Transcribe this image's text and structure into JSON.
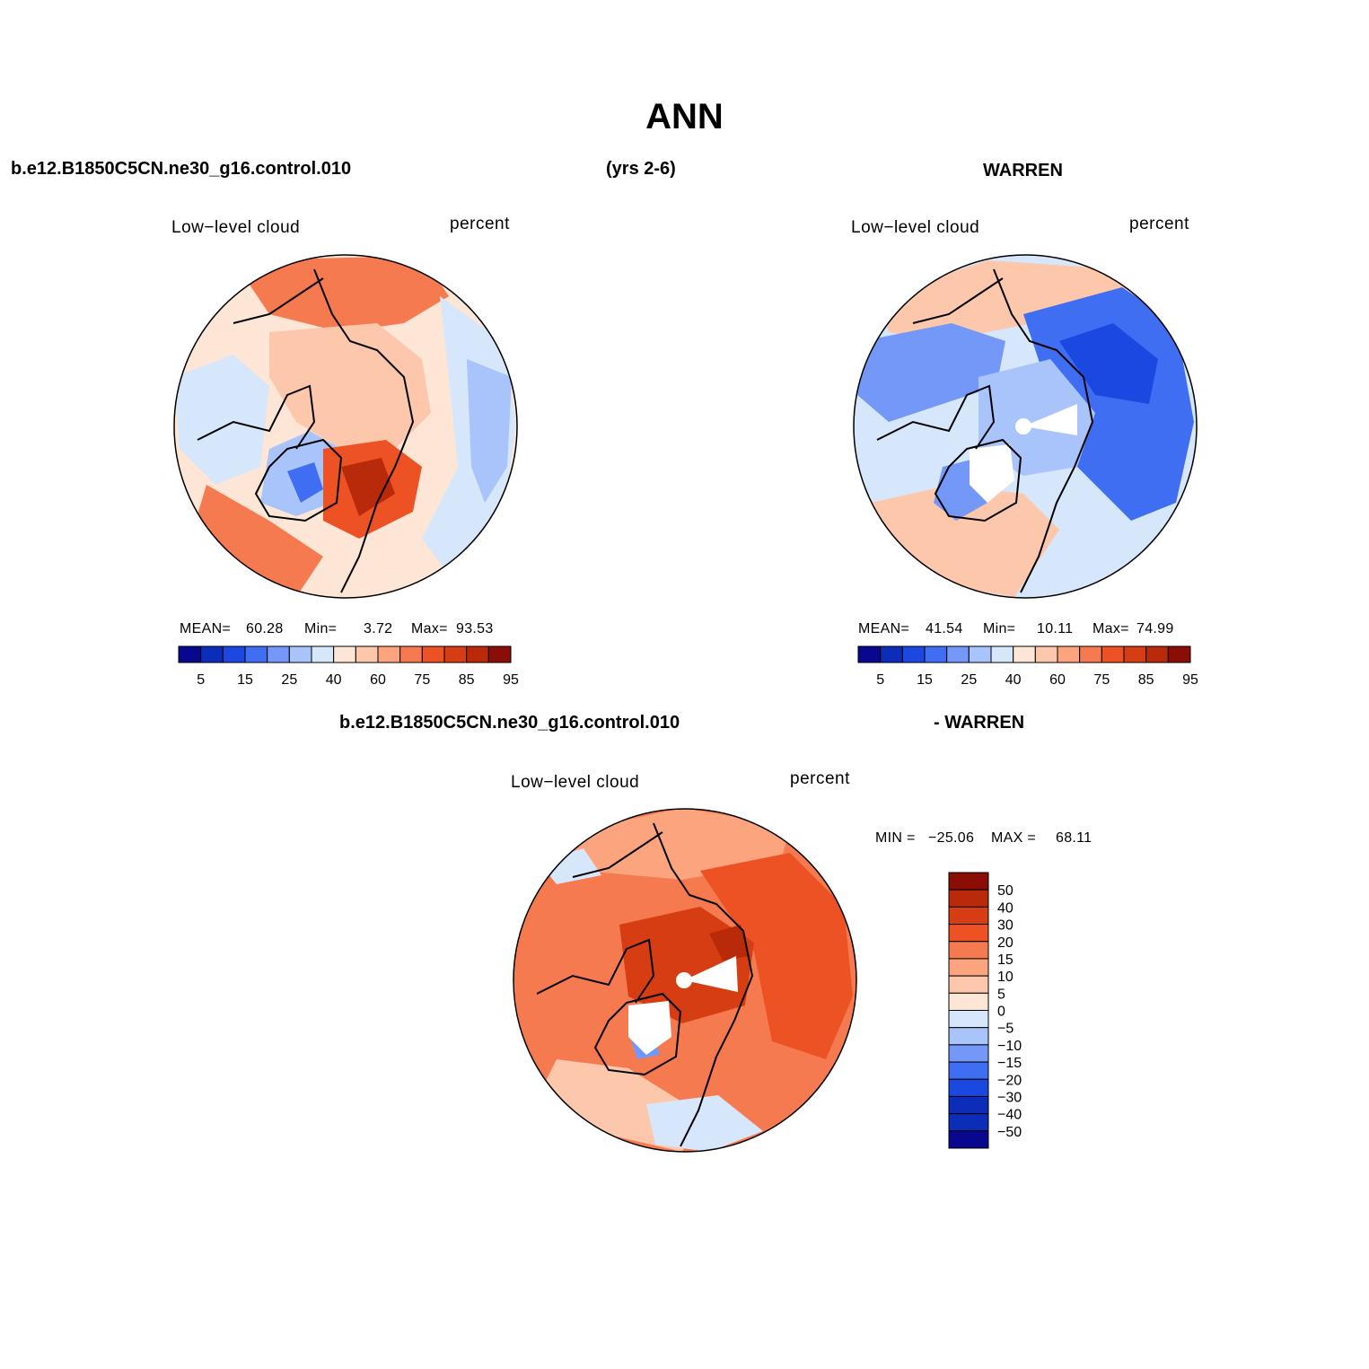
{
  "title": "ANN",
  "headers": {
    "case": "b.e12.B1850C5CN.ne30_g16.control.010",
    "years": "(yrs 2-6)",
    "obs": "WARREN",
    "diff_case": "b.e12.B1850C5CN.ne30_g16.control.010",
    "diff_obs": "- WARREN"
  },
  "chart_data": [
    {
      "type": "heatmap",
      "projection": "north-polar-stereographic",
      "variable": "Low−level cloud",
      "units": "percent",
      "stats": {
        "mean_label": "MEAN=",
        "mean": "60.28",
        "min_label": "Min=",
        "min": "3.72",
        "max_label": "Max=",
        "max": "93.53"
      },
      "colorbar": {
        "orientation": "horizontal",
        "tick_labels": [
          "5",
          "15",
          "25",
          "40",
          "60",
          "75",
          "85",
          "95"
        ],
        "levels": [
          5,
          10,
          15,
          20,
          25,
          30,
          40,
          50,
          60,
          70,
          75,
          80,
          85,
          90,
          95
        ],
        "colors": [
          "#08088e",
          "#0b2db8",
          "#1a48e0",
          "#3f6ef2",
          "#7398f7",
          "#a8c4fa",
          "#d6e6fb",
          "#fde6d6",
          "#fcc7ab",
          "#fba47d",
          "#f67a4f",
          "#ec5224",
          "#d63d12",
          "#b82a0a",
          "#8a0d06"
        ]
      }
    },
    {
      "type": "heatmap",
      "projection": "north-polar-stereographic",
      "variable": "Low−level cloud",
      "units": "percent",
      "stats": {
        "mean_label": "MEAN=",
        "mean": "41.54",
        "min_label": "Min=",
        "min": "10.11",
        "max_label": "Max=",
        "max": "74.99"
      },
      "colorbar": {
        "orientation": "horizontal",
        "tick_labels": [
          "5",
          "15",
          "25",
          "40",
          "60",
          "75",
          "85",
          "95"
        ],
        "levels": [
          5,
          10,
          15,
          20,
          25,
          30,
          40,
          50,
          60,
          70,
          75,
          80,
          85,
          90,
          95
        ],
        "colors": [
          "#08088e",
          "#0b2db8",
          "#1a48e0",
          "#3f6ef2",
          "#7398f7",
          "#a8c4fa",
          "#d6e6fb",
          "#fde6d6",
          "#fcc7ab",
          "#fba47d",
          "#f67a4f",
          "#ec5224",
          "#d63d12",
          "#b82a0a",
          "#8a0d06"
        ]
      }
    },
    {
      "type": "heatmap",
      "projection": "north-polar-stereographic",
      "variable": "Low−level cloud",
      "units": "percent",
      "stats": {
        "min_label": "MIN =",
        "min": "−25.06",
        "max_label": "MAX =",
        "max": "68.11"
      },
      "colorbar": {
        "orientation": "vertical",
        "tick_labels": [
          "50",
          "40",
          "30",
          "20",
          "15",
          "10",
          "5",
          "0",
          "−5",
          "−10",
          "−15",
          "−20",
          "−30",
          "−40",
          "−50"
        ],
        "colors": [
          "#8a0d06",
          "#b82a0a",
          "#d63d12",
          "#ec5224",
          "#f67a4f",
          "#fba47d",
          "#fcc7ab",
          "#fde6d6",
          "#d6e6fb",
          "#a8c4fa",
          "#7398f7",
          "#3f6ef2",
          "#1a48e0",
          "#0b2db8",
          "#0b2db8",
          "#08088e"
        ]
      }
    }
  ]
}
